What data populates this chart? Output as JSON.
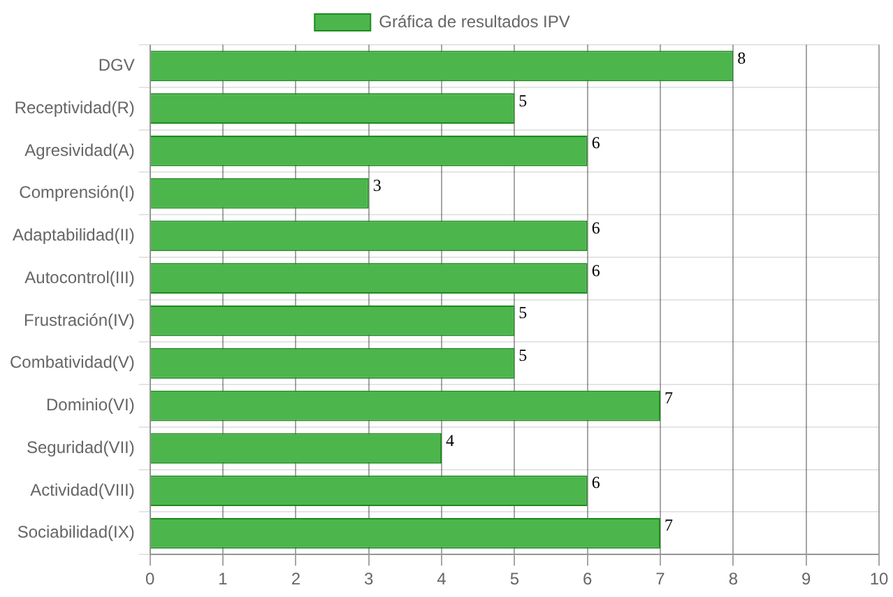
{
  "chart_data": {
    "type": "bar",
    "orientation": "horizontal",
    "categories": [
      "DGV",
      "Receptividad(R)",
      "Agresividad(A)",
      "Comprensión(I)",
      "Adaptabilidad(II)",
      "Autocontrol(III)",
      "Frustración(IV)",
      "Combatividad(V)",
      "Dominio(VI)",
      "Seguridad(VII)",
      "Actividad(VIII)",
      "Sociabilidad(IX)"
    ],
    "series": [
      {
        "name": "Gráfica de resultados IPV",
        "color": "#4cb54c",
        "values": [
          8,
          5,
          6,
          3,
          6,
          6,
          5,
          5,
          7,
          4,
          6,
          7
        ]
      }
    ],
    "xlim": [
      0,
      10
    ],
    "xticks": [
      0,
      1,
      2,
      3,
      4,
      5,
      6,
      7,
      8,
      9,
      10
    ],
    "grid": true,
    "legend": "top",
    "data_labels": true
  }
}
